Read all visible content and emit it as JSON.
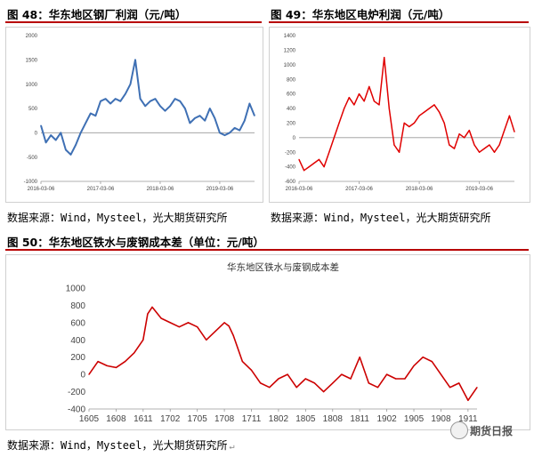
{
  "fig48": {
    "title": "图 48：华东地区钢厂利润（元/吨）",
    "chart_data": {
      "type": "line",
      "title": "",
      "xlabel": "",
      "ylabel": "",
      "ylim": [
        -1000,
        2000
      ],
      "y_ticks": [
        "2000",
        "1500",
        "1000",
        "500",
        "0",
        "-500",
        "-1000"
      ],
      "x_ticks": [
        "2016-03-06",
        "2017-03-06",
        "2018-03-06",
        "2019-03-06"
      ],
      "x_tick_values": [
        0,
        12,
        24,
        36
      ],
      "color": "#3f70b4",
      "series": [
        {
          "x": [
            0,
            1,
            2,
            3,
            4,
            5,
            6,
            7,
            8,
            9,
            10,
            11,
            12,
            13,
            14,
            15,
            16,
            17,
            18,
            19,
            20,
            21,
            22,
            23,
            24,
            25,
            26,
            27,
            28,
            29,
            30,
            31,
            32,
            33,
            34,
            35,
            36,
            37,
            38,
            39,
            40,
            41,
            42,
            43
          ],
          "values": [
            150,
            -200,
            -50,
            -150,
            0,
            -350,
            -450,
            -250,
            0,
            200,
            400,
            350,
            650,
            700,
            600,
            700,
            650,
            800,
            1000,
            1500,
            700,
            550,
            650,
            700,
            550,
            450,
            550,
            700,
            650,
            500,
            200,
            300,
            350,
            250,
            500,
            300,
            0,
            -50,
            0,
            100,
            50,
            250,
            600,
            350
          ]
        }
      ]
    }
  },
  "fig49": {
    "title": "图 49：华东地区电炉利润（元/吨）",
    "chart_data": {
      "type": "line",
      "title": "",
      "xlabel": "",
      "ylabel": "",
      "ylim": [
        -600,
        1400
      ],
      "y_ticks": [
        "1400",
        "1200",
        "1000",
        "800",
        "600",
        "400",
        "200",
        "0",
        "-200",
        "-400",
        "-600"
      ],
      "x_ticks": [
        "2016-03-06",
        "2017-03-06",
        "2018-03-06",
        "2019-03-06"
      ],
      "x_tick_values": [
        0,
        12,
        24,
        36
      ],
      "color": "#e00000",
      "series": [
        {
          "x": [
            0,
            1,
            2,
            3,
            4,
            5,
            6,
            7,
            8,
            9,
            10,
            11,
            12,
            13,
            14,
            15,
            16,
            17,
            18,
            19,
            20,
            21,
            22,
            23,
            24,
            25,
            26,
            27,
            28,
            29,
            30,
            31,
            32,
            33,
            34,
            35,
            36,
            37,
            38,
            39,
            40,
            41,
            42,
            43
          ],
          "values": [
            -300,
            -450,
            -400,
            -350,
            -300,
            -400,
            -200,
            0,
            200,
            400,
            550,
            450,
            600,
            500,
            700,
            500,
            450,
            1100,
            400,
            -100,
            -200,
            200,
            150,
            200,
            300,
            350,
            400,
            450,
            350,
            200,
            -100,
            -150,
            50,
            0,
            100,
            -100,
            -200,
            -150,
            -100,
            -200,
            -100,
            100,
            300,
            80
          ]
        }
      ]
    }
  },
  "fig50": {
    "title": "图 50：华东地区铁水与废钢成本差（单位：元/吨）",
    "chart_data": {
      "type": "line",
      "title": "华东地区铁水与废钢成本差",
      "xlabel": "",
      "ylabel": "",
      "ylim": [
        -400,
        1000
      ],
      "y_ticks": [
        "1000",
        "800",
        "600",
        "400",
        "200",
        "0",
        "-200",
        "-400"
      ],
      "x_ticks": [
        "1605",
        "1608",
        "1611",
        "1702",
        "1705",
        "1708",
        "1711",
        "1802",
        "1805",
        "1808",
        "1811",
        "1902",
        "1905",
        "1908",
        "1911"
      ],
      "x_tick_values": [
        0,
        3,
        6,
        9,
        12,
        15,
        18,
        21,
        24,
        27,
        30,
        33,
        36,
        39,
        42
      ],
      "color": "#cc0000",
      "series": [
        {
          "x": [
            0,
            1,
            2,
            3,
            4,
            5,
            6,
            6.5,
            7,
            8,
            9,
            10,
            11,
            12,
            13,
            14,
            15,
            15.5,
            16,
            17,
            18,
            19,
            20,
            21,
            22,
            23,
            24,
            25,
            26,
            27,
            28,
            29,
            30,
            31,
            32,
            33,
            34,
            35,
            36,
            37,
            38,
            39,
            40,
            41,
            42,
            43
          ],
          "values": [
            0,
            150,
            100,
            80,
            150,
            250,
            400,
            700,
            780,
            650,
            600,
            550,
            600,
            550,
            400,
            500,
            600,
            560,
            450,
            150,
            50,
            -100,
            -150,
            -50,
            0,
            -150,
            -50,
            -100,
            -200,
            -100,
            0,
            -50,
            200,
            -100,
            -150,
            0,
            -50,
            -50,
            100,
            200,
            150,
            0,
            -150,
            -100,
            -300,
            -150
          ]
        }
      ]
    }
  },
  "source_text": "数据来源：Wind，Mysteel，光大期货研究所",
  "watermark": "期货日报",
  "icons": {
    "return_mark": "↵"
  }
}
